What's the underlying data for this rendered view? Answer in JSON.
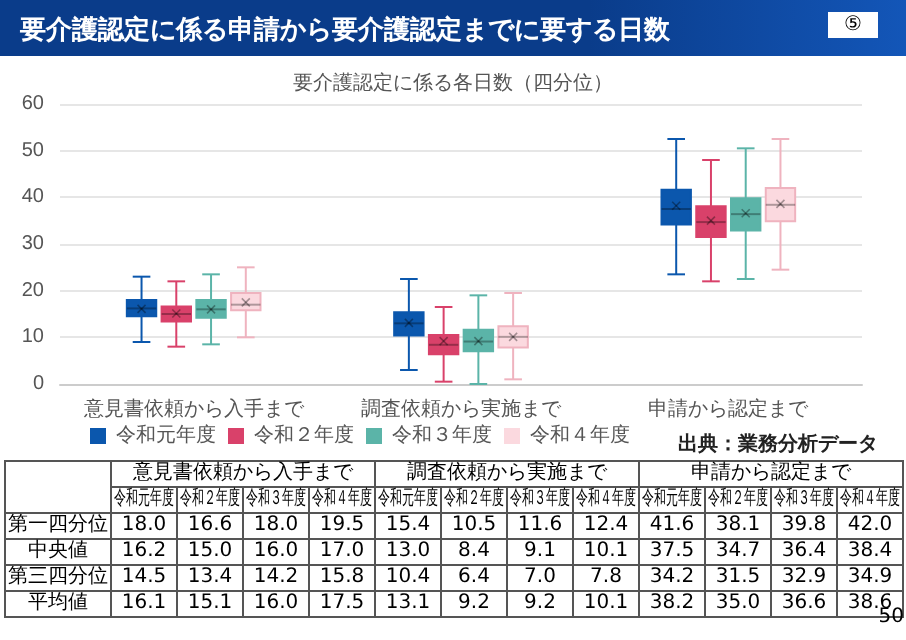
{
  "chart_data": {
    "type": "box",
    "title": "要介護認定に係る申請から要介護認定までに要する日数",
    "subtitle": "要介護認定に係る各日数（四分位）",
    "categories": [
      "意見書依頼から入手まで",
      "調査依頼から実施まで",
      "申請から認定まで"
    ],
    "ylim": [
      0,
      60
    ],
    "yticks": [
      0,
      10,
      20,
      30,
      40,
      50,
      60
    ],
    "grid": "y",
    "legend": "bottom",
    "marker": "cross",
    "series": [
      {
        "name": "令和元年度",
        "color": "#0b57ad",
        "boxes": [
          {
            "low": 9,
            "q1": 14.5,
            "median": 16.2,
            "q3": 18.0,
            "high": 23,
            "mean": 16.1
          },
          {
            "low": 3,
            "q1": 10.4,
            "median": 13.0,
            "q3": 15.4,
            "high": 22.5,
            "mean": 13.1
          },
          {
            "low": 23.5,
            "q1": 34.2,
            "median": 37.5,
            "q3": 41.6,
            "high": 52.5,
            "mean": 38.2
          }
        ],
        "value_labels": [
          [
            "18.0",
            "16.2",
            "14.5",
            "16.1"
          ],
          [
            "15.4",
            "13.0",
            "10.4",
            "13.1"
          ],
          [
            "41.6",
            "37.5",
            "34.2",
            "38.2"
          ]
        ]
      },
      {
        "name": "令和２年度",
        "color": "#d9416a",
        "boxes": [
          {
            "low": 8,
            "q1": 13.4,
            "median": 15.0,
            "q3": 16.6,
            "high": 22,
            "mean": 15.1
          },
          {
            "low": 0.5,
            "q1": 6.4,
            "median": 8.4,
            "q3": 10.5,
            "high": 16.5,
            "mean": 9.2
          },
          {
            "low": 22,
            "q1": 31.5,
            "median": 34.7,
            "q3": 38.1,
            "high": 48,
            "mean": 35.0
          }
        ],
        "value_labels": [
          [
            "16.6",
            "15.0",
            "13.4",
            "15.1"
          ],
          [
            "10.5",
            "8.4",
            "6.4",
            "9.2"
          ],
          [
            "38.1",
            "34.7",
            "31.5",
            "35.0"
          ]
        ]
      },
      {
        "name": "令和３年度",
        "color": "#5bb4a8",
        "boxes": [
          {
            "low": 8.5,
            "q1": 14.2,
            "median": 16.0,
            "q3": 18.0,
            "high": 23.5,
            "mean": 16.0
          },
          {
            "low": 0,
            "q1": 7.0,
            "median": 9.1,
            "q3": 11.6,
            "high": 19,
            "mean": 9.2
          },
          {
            "low": 22.5,
            "q1": 32.9,
            "median": 36.4,
            "q3": 39.8,
            "high": 50.5,
            "mean": 36.6
          }
        ],
        "value_labels": [
          [
            "18.0",
            "16.0",
            "14.2",
            "16.0"
          ],
          [
            "11.6",
            "9.1",
            "7.0",
            "9.2"
          ],
          [
            "39.8",
            "36.4",
            "32.9",
            "36.6"
          ]
        ]
      },
      {
        "name": "令和４年度",
        "color": "#fbd9df",
        "boxes": [
          {
            "low": 10,
            "q1": 15.8,
            "median": 17.0,
            "q3": 19.5,
            "high": 25,
            "mean": 17.5
          },
          {
            "low": 1,
            "q1": 7.8,
            "median": 10.1,
            "q3": 12.4,
            "high": 19.5,
            "mean": 10.1
          },
          {
            "low": 24.5,
            "q1": 34.9,
            "median": 38.4,
            "q3": 42.0,
            "high": 52.5,
            "mean": 38.6
          }
        ],
        "value_labels": [
          [
            "19.5",
            "17.0",
            "15.8",
            "17.5"
          ],
          [
            "12.4",
            "10.1",
            "7.8",
            "10.1"
          ],
          [
            "42.0",
            "38.4",
            "34.9",
            "38.6"
          ]
        ]
      }
    ],
    "annotations": [
      "第一四分位",
      "中央値",
      "第三四分位",
      "平均値",
      "出典：業務分析データ",
      "⑤",
      "50"
    ]
  }
}
